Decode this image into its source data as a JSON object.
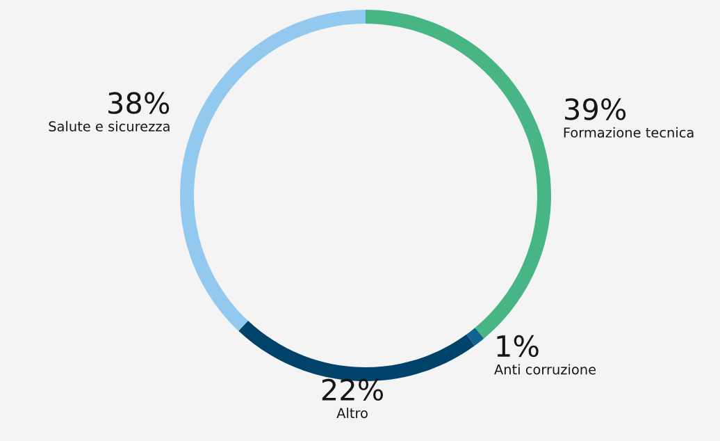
{
  "chart_data": {
    "type": "donut",
    "categories": [
      "Formazione tecnica",
      "Anti corruzione",
      "Altro",
      "Salute e sicurezza"
    ],
    "values": [
      39,
      1,
      22,
      38
    ],
    "value_labels": [
      "39%",
      "1%",
      "22%",
      "38%"
    ],
    "colors": [
      "#48b585",
      "#10628f",
      "#00436a",
      "#93c9ee"
    ],
    "legend": false
  }
}
